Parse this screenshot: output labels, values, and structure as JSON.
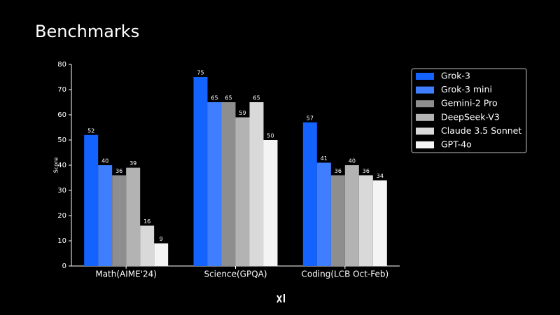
{
  "chart_data": {
    "type": "bar",
    "title": "Benchmarks",
    "y_label": "Score",
    "categories": [
      "Math(AIME'24)",
      "Science(GPQA)",
      "Coding(LCB Oct-Feb)"
    ],
    "series": [
      {
        "name": "Grok-3",
        "color": "#1463ff",
        "values": [
          52,
          75,
          57
        ]
      },
      {
        "name": "Grok-3 mini",
        "color": "#3f7fff",
        "values": [
          40,
          65,
          41
        ]
      },
      {
        "name": "Gemini-2 Pro",
        "color": "#8e8e8e",
        "values": [
          36,
          65,
          36
        ]
      },
      {
        "name": "DeepSeek-V3",
        "color": "#b3b3b3",
        "values": [
          39,
          59,
          40
        ]
      },
      {
        "name": "Claude 3.5 Sonnet",
        "color": "#d9d9d9",
        "values": [
          16,
          65,
          36
        ]
      },
      {
        "name": "GPT-4o",
        "color": "#f4f4f4",
        "values": [
          9,
          50,
          34
        ]
      }
    ],
    "ylim": [
      0,
      80
    ],
    "yticks": [
      0,
      10,
      20,
      30,
      40,
      50,
      60,
      70,
      80
    ],
    "grid": false,
    "legend": "upper right"
  }
}
